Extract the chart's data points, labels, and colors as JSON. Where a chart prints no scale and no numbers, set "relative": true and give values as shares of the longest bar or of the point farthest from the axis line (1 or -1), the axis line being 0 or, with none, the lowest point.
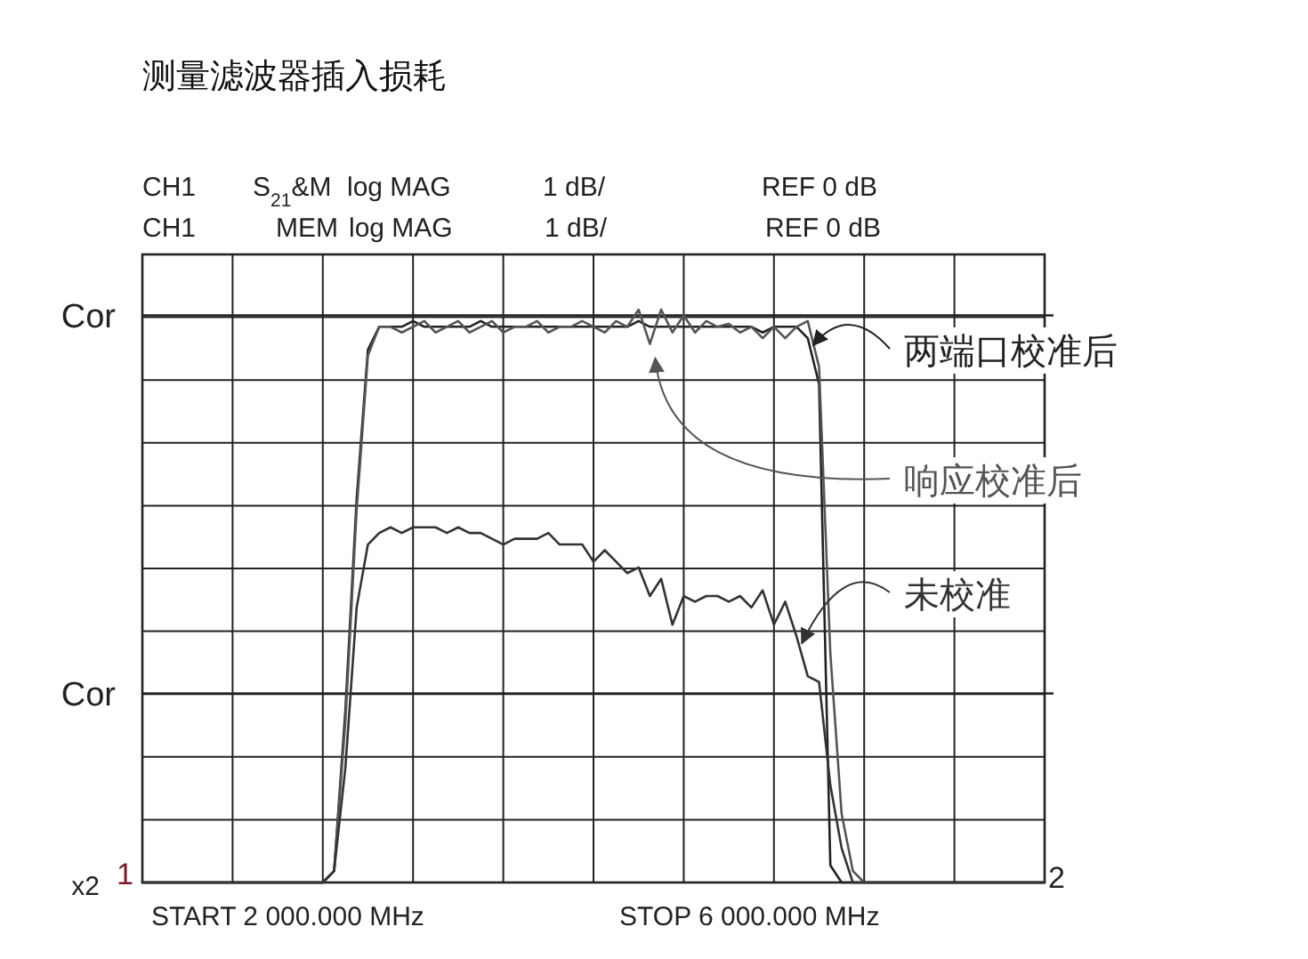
{
  "chart_data": {
    "type": "line",
    "title": "测量滤波器插入损耗",
    "relative": true,
    "grid": true,
    "legend": "right",
    "categories": [
      null,
      null,
      null,
      null,
      null,
      null,
      null,
      null,
      null,
      null,
      null,
      null,
      null,
      null,
      null,
      null,
      null,
      null,
      null,
      null,
      null,
      null,
      null,
      null,
      null,
      null,
      null,
      null,
      null,
      null,
      null,
      null,
      null,
      null,
      null,
      null,
      null,
      null,
      null,
      null,
      null,
      null,
      null,
      null,
      null,
      null,
      null,
      null,
      null,
      null,
      null,
      null,
      null,
      null,
      null,
      null,
      null,
      null,
      null,
      null,
      null,
      null,
      null,
      null,
      null,
      null,
      null,
      null,
      null,
      null,
      null,
      null,
      null,
      null,
      null,
      null,
      null,
      null,
      null,
      null,
      null
    ],
    "series": [
      {
        "name": "两端口校准后",
        "color": "#222222",
        "values": [
          0,
          0,
          0,
          0,
          0,
          0,
          0,
          0,
          0,
          0,
          0,
          0,
          0,
          0,
          0,
          0,
          0,
          0.02,
          0.3,
          0.67,
          0.93,
          0.97,
          0.97,
          0.97,
          0.98,
          0.97,
          0.97,
          0.97,
          0.97,
          0.97,
          0.98,
          0.97,
          0.97,
          0.97,
          0.97,
          0.97,
          0.97,
          0.97,
          0.97,
          0.97,
          0.97,
          0.97,
          0.97,
          0.97,
          0.98,
          0.97,
          0.97,
          0.97,
          0.97,
          0.97,
          0.97,
          0.97,
          0.97,
          0.97,
          0.97,
          0.96,
          0.97,
          0.97,
          0.97,
          0.95,
          0.87,
          0.03,
          0,
          0,
          0,
          0,
          0,
          0,
          0,
          0,
          0,
          0,
          0,
          0,
          0,
          0,
          0,
          0,
          0,
          0,
          0
        ]
      },
      {
        "name": "响应校准后",
        "color": "#555555",
        "values": [
          0,
          0,
          0,
          0,
          0,
          0,
          0,
          0,
          0,
          0,
          0,
          0,
          0,
          0,
          0,
          0,
          0,
          0.02,
          0.28,
          0.65,
          0.92,
          0.97,
          0.97,
          0.96,
          0.97,
          0.98,
          0.96,
          0.97,
          0.98,
          0.96,
          0.97,
          0.98,
          0.96,
          0.97,
          0.97,
          0.98,
          0.96,
          0.97,
          0.97,
          0.98,
          0.97,
          0.96,
          0.98,
          0.97,
          1.0,
          0.94,
          1.0,
          0.96,
          0.99,
          0.96,
          0.98,
          0.97,
          0.975,
          0.96,
          0.97,
          0.95,
          0.97,
          0.95,
          0.97,
          0.98,
          0.9,
          0.4,
          0.12,
          0.02,
          0,
          0,
          0,
          0,
          0,
          0,
          0,
          0,
          0,
          0,
          0,
          0,
          0,
          0,
          0,
          0,
          0
        ]
      },
      {
        "name": "未校准",
        "color": "#333333",
        "values": [
          0,
          0,
          0,
          0,
          0,
          0,
          0,
          0,
          0,
          0,
          0,
          0,
          0,
          0,
          0,
          0,
          0,
          0.02,
          0.2,
          0.48,
          0.59,
          0.61,
          0.62,
          0.61,
          0.62,
          0.62,
          0.62,
          0.61,
          0.62,
          0.61,
          0.61,
          0.6,
          0.59,
          0.6,
          0.6,
          0.6,
          0.61,
          0.59,
          0.59,
          0.59,
          0.56,
          0.58,
          0.56,
          0.54,
          0.55,
          0.5,
          0.53,
          0.45,
          0.5,
          0.49,
          0.5,
          0.5,
          0.49,
          0.5,
          0.48,
          0.51,
          0.45,
          0.49,
          0.43,
          0.36,
          0.35,
          0.17,
          0.06,
          0,
          0,
          0,
          0,
          0,
          0,
          0,
          0,
          0,
          0,
          0,
          0,
          0,
          0,
          0,
          0,
          0,
          0
        ]
      }
    ],
    "ref_lines": [
      {
        "axis": "y",
        "value": 0.99,
        "label": "Cor",
        "color": "#222222"
      },
      {
        "axis": "y",
        "value": 0.33,
        "label": "Cor",
        "color": "#222222"
      }
    ],
    "annotations": [
      "CH1",
      "S$_{21}$&M",
      "log MAG",
      "1 dB/",
      "REF  0 dB",
      "CH1",
      "MEM",
      "log MAG",
      "1 dB/",
      "REF  0 dB",
      "START 2 000.000 MHz",
      "STOP 6 000.000 MHz",
      "1",
      "x2",
      "2"
    ]
  }
}
